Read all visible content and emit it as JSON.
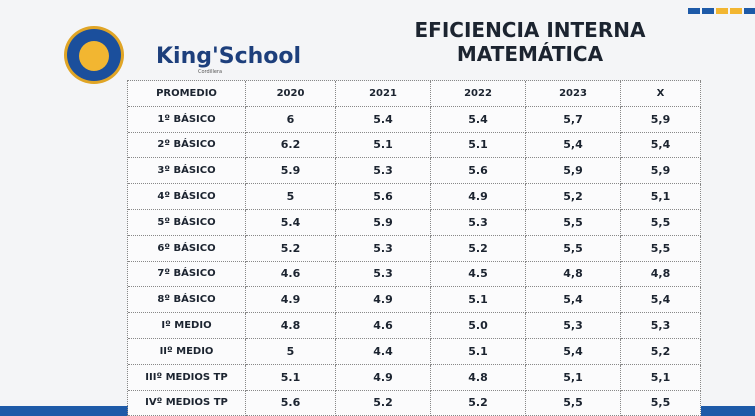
{
  "header": {
    "brand": "King'School",
    "subbrand": "Cordillera",
    "title_lines": [
      "EFICIENCIA INTERNA",
      "MATEMÁTICA"
    ]
  },
  "table": {
    "columns": [
      "PROMEDIO",
      "2020",
      "2021",
      "2022",
      "2023",
      "X"
    ],
    "rows": [
      [
        "1º BÁSICO",
        "6",
        "5.4",
        "5.4",
        "5,7",
        "5,9"
      ],
      [
        "2º BÁSICO",
        "6.2",
        "5.1",
        "5.1",
        "5,4",
        "5,4"
      ],
      [
        "3º BÁSICO",
        "5.9",
        "5.3",
        "5.6",
        "5,9",
        "5,9"
      ],
      [
        "4º BÁSICO",
        "5",
        "5.6",
        "4.9",
        "5,2",
        "5,1"
      ],
      [
        "5º BÁSICO",
        "5.4",
        "5.9",
        "5.3",
        "5,5",
        "5,5"
      ],
      [
        "6º BÁSICO",
        "5.2",
        "5.3",
        "5.2",
        "5,5",
        "5,5"
      ],
      [
        "7º BÁSICO",
        "4.6",
        "5.3",
        "4.5",
        "4,8",
        "4,8"
      ],
      [
        "8º BÁSICO",
        "4.9",
        "4.9",
        "5.1",
        "5,4",
        "5,4"
      ],
      [
        "Iº MEDIO",
        "4.8",
        "4.6",
        "5.0",
        "5,3",
        "5,3"
      ],
      [
        "IIº MEDIO",
        "5",
        "4.4",
        "5.1",
        "5,4",
        "5,2"
      ],
      [
        "IIIº MEDIOS TP",
        "5.1",
        "4.9",
        "4.8",
        "5,1",
        "5,1"
      ],
      [
        "IVº MEDIOS TP",
        "5.6",
        "5.2",
        "5.2",
        "5,5",
        "5,5"
      ]
    ]
  }
}
